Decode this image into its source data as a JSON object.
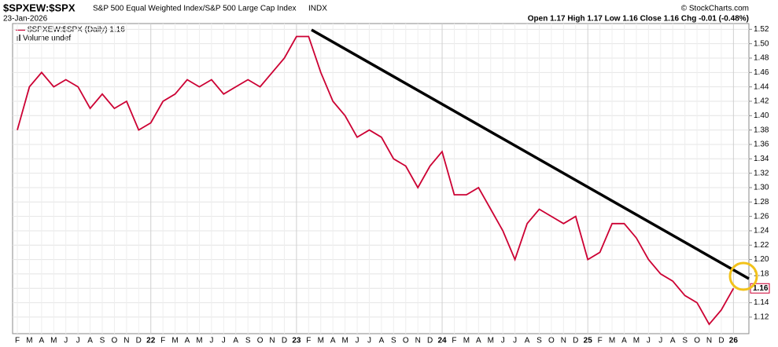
{
  "chart_data": {
    "type": "line",
    "symbol": "$SPXEW:$SPX",
    "title": "S&P 500 Equal Weighted Index/S&P 500 Large Cap Index",
    "exchange": "INDX",
    "date": "23-Jan-2026",
    "credit": "© StockCharts.com",
    "quote": "Open 1.17  High 1.17  Low 1.16  Close 1.16  Chg -0.01 (-0.48%)",
    "volume_label": "Volume undef",
    "last_value_label": "1.16",
    "categories": [
      "F",
      "M",
      "A",
      "M",
      "J",
      "J",
      "A",
      "S",
      "O",
      "N",
      "D",
      "22",
      "F",
      "M",
      "A",
      "M",
      "J",
      "J",
      "A",
      "S",
      "O",
      "N",
      "D",
      "23",
      "F",
      "M",
      "A",
      "M",
      "J",
      "J",
      "A",
      "S",
      "O",
      "N",
      "D",
      "24",
      "F",
      "M",
      "A",
      "M",
      "J",
      "J",
      "A",
      "S",
      "O",
      "N",
      "D",
      "25",
      "F",
      "M",
      "A",
      "M",
      "J",
      "J",
      "A",
      "S",
      "O",
      "N",
      "D",
      "26"
    ],
    "series": [
      {
        "name": "$SPXEW:$SPX (Daily) 1.16",
        "color": "#cc0033",
        "values": [
          1.38,
          1.44,
          1.46,
          1.44,
          1.45,
          1.44,
          1.41,
          1.43,
          1.41,
          1.42,
          1.38,
          1.39,
          1.42,
          1.43,
          1.45,
          1.44,
          1.45,
          1.43,
          1.44,
          1.45,
          1.44,
          1.46,
          1.48,
          1.51,
          1.51,
          1.46,
          1.42,
          1.4,
          1.37,
          1.38,
          1.37,
          1.34,
          1.33,
          1.3,
          1.33,
          1.35,
          1.29,
          1.29,
          1.3,
          1.27,
          1.24,
          1.2,
          1.25,
          1.27,
          1.26,
          1.25,
          1.26,
          1.2,
          1.21,
          1.25,
          1.25,
          1.23,
          1.2,
          1.18,
          1.17,
          1.15,
          1.14,
          1.11,
          1.13,
          1.16
        ]
      }
    ],
    "ylim": [
      1.097,
      1.528
    ],
    "yticks": [
      1.12,
      1.14,
      1.16,
      1.18,
      {
        "value": 1.2,
        "label": "1.20"
      },
      1.22,
      1.24,
      1.26,
      1.28,
      {
        "value": 1.3,
        "label": "1.30"
      },
      1.32,
      1.34,
      1.36,
      1.38,
      {
        "value": 1.4,
        "label": "1.40"
      },
      1.42,
      1.44,
      1.46,
      1.48,
      {
        "value": 1.5,
        "label": "1.50"
      },
      1.52
    ],
    "grid": true
  }
}
